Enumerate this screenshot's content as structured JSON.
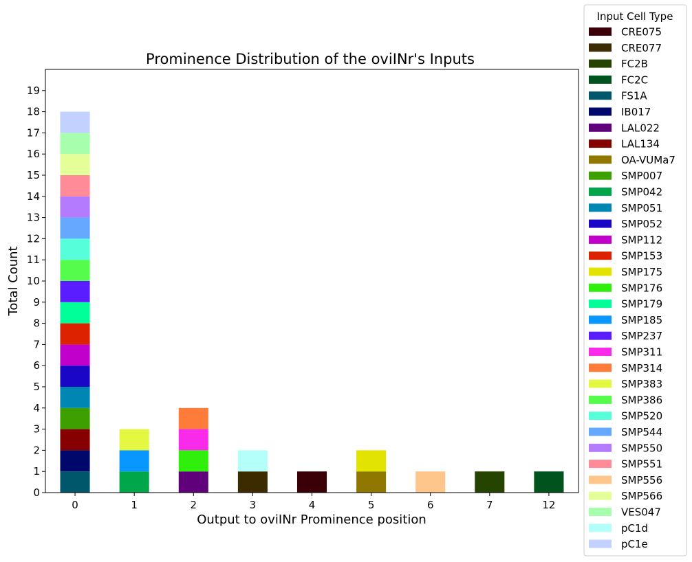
{
  "chart_data": {
    "type": "bar",
    "stacked": true,
    "title": "Prominence Distribution of the oviINr's Inputs",
    "xlabel": "Output to oviINr Prominence position",
    "ylabel": "Total Count",
    "categories": [
      "0",
      "1",
      "2",
      "3",
      "4",
      "5",
      "6",
      "7",
      "12"
    ],
    "ylim": [
      0,
      20
    ],
    "yticks": [
      0,
      1,
      2,
      3,
      4,
      5,
      6,
      7,
      8,
      9,
      10,
      11,
      12,
      13,
      14,
      15,
      16,
      17,
      18,
      19
    ],
    "grid": false,
    "legend": {
      "title": "Input Cell Type",
      "placement": "outside-right"
    },
    "series": [
      {
        "name": "CRE075",
        "color": "#3b0007",
        "values": [
          0,
          0,
          0,
          0,
          1,
          0,
          0,
          0,
          0
        ]
      },
      {
        "name": "CRE077",
        "color": "#3d2b00",
        "values": [
          0,
          0,
          0,
          1,
          0,
          0,
          0,
          0,
          0
        ]
      },
      {
        "name": "FC2B",
        "color": "#244400",
        "values": [
          0,
          0,
          0,
          0,
          0,
          0,
          0,
          1,
          0
        ]
      },
      {
        "name": "FC2C",
        "color": "#00531c",
        "values": [
          0,
          0,
          0,
          0,
          0,
          0,
          0,
          0,
          1
        ]
      },
      {
        "name": "FS1A",
        "color": "#00566a",
        "values": [
          1,
          0,
          0,
          0,
          0,
          0,
          0,
          0,
          0
        ]
      },
      {
        "name": "IB017",
        "color": "#00086c",
        "values": [
          1,
          0,
          0,
          0,
          0,
          0,
          0,
          0,
          0
        ]
      },
      {
        "name": "LAL022",
        "color": "#60007a",
        "values": [
          0,
          0,
          1,
          0,
          0,
          0,
          0,
          0,
          0
        ]
      },
      {
        "name": "LAL134",
        "color": "#870000",
        "values": [
          1,
          0,
          0,
          0,
          0,
          0,
          0,
          0,
          0
        ]
      },
      {
        "name": "OA-VUMa7",
        "color": "#907700",
        "values": [
          0,
          0,
          0,
          0,
          0,
          1,
          0,
          0,
          0
        ]
      },
      {
        "name": "SMP007",
        "color": "#3d9f00",
        "values": [
          1,
          0,
          0,
          0,
          0,
          0,
          0,
          0,
          0
        ]
      },
      {
        "name": "SMP042",
        "color": "#00a64a",
        "values": [
          0,
          1,
          0,
          0,
          0,
          0,
          0,
          0,
          0
        ]
      },
      {
        "name": "SMP051",
        "color": "#0086b3",
        "values": [
          1,
          0,
          0,
          0,
          0,
          0,
          0,
          0,
          0
        ]
      },
      {
        "name": "SMP052",
        "color": "#1a06c7",
        "values": [
          1,
          0,
          0,
          0,
          0,
          0,
          0,
          0,
          0
        ]
      },
      {
        "name": "SMP112",
        "color": "#c100cc",
        "values": [
          1,
          0,
          0,
          0,
          0,
          0,
          0,
          0,
          0
        ]
      },
      {
        "name": "SMP153",
        "color": "#dd2200",
        "values": [
          1,
          0,
          0,
          0,
          0,
          0,
          0,
          0,
          0
        ]
      },
      {
        "name": "SMP175",
        "color": "#e3e300",
        "values": [
          0,
          0,
          0,
          0,
          0,
          1,
          0,
          0,
          0
        ]
      },
      {
        "name": "SMP176",
        "color": "#30ef0c",
        "values": [
          0,
          0,
          1,
          0,
          0,
          0,
          0,
          0,
          0
        ]
      },
      {
        "name": "SMP179",
        "color": "#00ff99",
        "values": [
          1,
          0,
          0,
          0,
          0,
          0,
          0,
          0,
          0
        ]
      },
      {
        "name": "SMP185",
        "color": "#0897ff",
        "values": [
          0,
          1,
          0,
          0,
          0,
          0,
          0,
          0,
          0
        ]
      },
      {
        "name": "SMP237",
        "color": "#5a1dff",
        "values": [
          1,
          0,
          0,
          0,
          0,
          0,
          0,
          0,
          0
        ]
      },
      {
        "name": "SMP311",
        "color": "#fa2aeb",
        "values": [
          0,
          0,
          1,
          0,
          0,
          0,
          0,
          0,
          0
        ]
      },
      {
        "name": "SMP314",
        "color": "#ff7b3a",
        "values": [
          0,
          0,
          1,
          0,
          0,
          0,
          0,
          0,
          0
        ]
      },
      {
        "name": "SMP383",
        "color": "#e4f841",
        "values": [
          0,
          1,
          0,
          0,
          0,
          0,
          0,
          0,
          0
        ]
      },
      {
        "name": "SMP386",
        "color": "#55fc4c",
        "values": [
          1,
          0,
          0,
          0,
          0,
          0,
          0,
          0,
          0
        ]
      },
      {
        "name": "SMP520",
        "color": "#56ffd9",
        "values": [
          1,
          0,
          0,
          0,
          0,
          0,
          0,
          0,
          0
        ]
      },
      {
        "name": "SMP544",
        "color": "#65a8ff",
        "values": [
          1,
          0,
          0,
          0,
          0,
          0,
          0,
          0,
          0
        ]
      },
      {
        "name": "SMP550",
        "color": "#b47bff",
        "values": [
          1,
          0,
          0,
          0,
          0,
          0,
          0,
          0,
          0
        ]
      },
      {
        "name": "SMP551",
        "color": "#ff8a98",
        "values": [
          1,
          0,
          0,
          0,
          0,
          0,
          0,
          0,
          0
        ]
      },
      {
        "name": "SMP556",
        "color": "#ffc68c",
        "values": [
          0,
          0,
          0,
          0,
          0,
          0,
          1,
          0,
          0
        ]
      },
      {
        "name": "SMP566",
        "color": "#e4ff97",
        "values": [
          1,
          0,
          0,
          0,
          0,
          0,
          0,
          0,
          0
        ]
      },
      {
        "name": "VES047",
        "color": "#a7ffae",
        "values": [
          1,
          0,
          0,
          0,
          0,
          0,
          0,
          0,
          0
        ]
      },
      {
        "name": "pC1d",
        "color": "#b5fffa",
        "values": [
          0,
          0,
          0,
          1,
          0,
          0,
          0,
          0,
          0
        ]
      },
      {
        "name": "pC1e",
        "color": "#c2d1ff",
        "values": [
          1,
          0,
          0,
          0,
          0,
          0,
          0,
          0,
          0
        ]
      }
    ]
  }
}
